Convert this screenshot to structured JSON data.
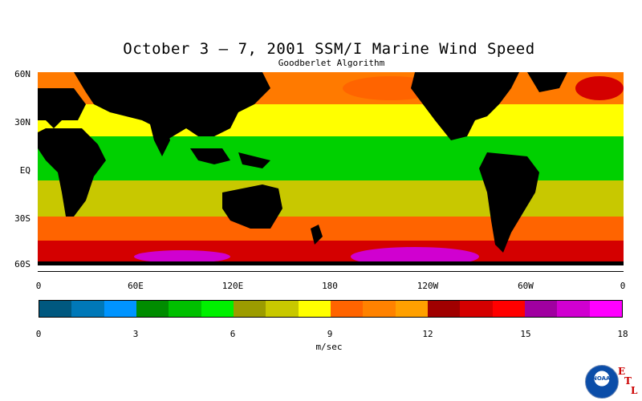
{
  "title": "October 3 – 7, 2001 SSM/I Marine Wind Speed",
  "subtitle": "Goodberlet Algorithm",
  "lat_labels": [
    "60N",
    "30N",
    "EQ",
    "30S",
    "60S"
  ],
  "lon_labels": [
    "0",
    "60E",
    "120E",
    "180",
    "120W",
    "60W",
    "0"
  ],
  "scale_labels": [
    "0",
    "3",
    "6",
    "9",
    "12",
    "15",
    "18"
  ],
  "units": "m/sec",
  "logo_text": "NOAA",
  "etl": [
    "E",
    "T",
    "L"
  ],
  "colorbar": {
    "min": 0,
    "max": 18,
    "step": 1,
    "colors": [
      "#00587f",
      "#0078b8",
      "#0094ff",
      "#008c00",
      "#00c000",
      "#00f000",
      "#9c9c00",
      "#c8c800",
      "#ffff00",
      "#ff6400",
      "#ff8200",
      "#ffa000",
      "#a00000",
      "#d40000",
      "#ff0000",
      "#a000a0",
      "#d000d0",
      "#ff00ff"
    ]
  },
  "map_colors": {
    "land": "#000000",
    "ocean_base": "#ff7a00",
    "calm": "#00d000",
    "moderate": "#c8c800",
    "breezy": "#ffff00",
    "strong": "#ff6400",
    "gale": "#d40000",
    "storm": "#d000d0"
  }
}
